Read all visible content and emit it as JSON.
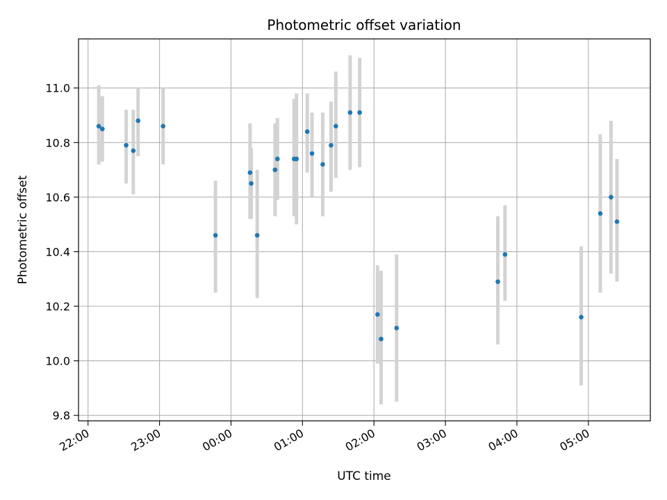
{
  "chart_data": {
    "type": "scatter",
    "title": "Photometric offset variation",
    "xlabel": "UTC time",
    "ylabel": "Photometric offset",
    "x_unit": "UTC time (HH:MM, night spanning midnight)",
    "xlim": [
      "21:52",
      "05:52"
    ],
    "ylim": [
      9.78,
      11.18
    ],
    "grid": true,
    "legend": "none",
    "x_ticks": [
      "22:00",
      "23:00",
      "00:00",
      "01:00",
      "02:00",
      "03:00",
      "04:00",
      "05:00"
    ],
    "y_ticks": [
      9.8,
      10.0,
      10.2,
      10.4,
      10.6,
      10.8,
      11.0
    ],
    "y_tick_labels": [
      "9.8",
      "10.0",
      "10.2",
      "10.4",
      "10.6",
      "10.8",
      "11.0"
    ],
    "colors": {
      "point": "#1f77b4",
      "errorbar": "#d3d3d3",
      "grid": "#b0b0b0"
    },
    "points": [
      {
        "x": "22:09",
        "y": 10.86,
        "ylow": 10.72,
        "yhigh": 11.01
      },
      {
        "x": "22:12",
        "y": 10.85,
        "ylow": 10.73,
        "yhigh": 10.97
      },
      {
        "x": "22:32",
        "y": 10.79,
        "ylow": 10.65,
        "yhigh": 10.92
      },
      {
        "x": "22:38",
        "y": 10.77,
        "ylow": 10.61,
        "yhigh": 10.92
      },
      {
        "x": "22:42",
        "y": 10.88,
        "ylow": 10.75,
        "yhigh": 11.0
      },
      {
        "x": "23:03",
        "y": 10.86,
        "ylow": 10.72,
        "yhigh": 11.0
      },
      {
        "x": "23:47",
        "y": 10.46,
        "ylow": 10.25,
        "yhigh": 10.66
      },
      {
        "x": "00:16",
        "y": 10.69,
        "ylow": 10.52,
        "yhigh": 10.87
      },
      {
        "x": "00:17",
        "y": 10.65,
        "ylow": 10.52,
        "yhigh": 10.78
      },
      {
        "x": "00:22",
        "y": 10.46,
        "ylow": 10.23,
        "yhigh": 10.7
      },
      {
        "x": "00:37",
        "y": 10.7,
        "ylow": 10.53,
        "yhigh": 10.87
      },
      {
        "x": "00:39",
        "y": 10.74,
        "ylow": 10.59,
        "yhigh": 10.89
      },
      {
        "x": "00:53",
        "y": 10.74,
        "ylow": 10.53,
        "yhigh": 10.96
      },
      {
        "x": "00:55",
        "y": 10.74,
        "ylow": 10.5,
        "yhigh": 10.98
      },
      {
        "x": "01:04",
        "y": 10.84,
        "ylow": 10.69,
        "yhigh": 10.98
      },
      {
        "x": "01:08",
        "y": 10.76,
        "ylow": 10.6,
        "yhigh": 10.91
      },
      {
        "x": "01:17",
        "y": 10.72,
        "ylow": 10.53,
        "yhigh": 10.91
      },
      {
        "x": "01:24",
        "y": 10.79,
        "ylow": 10.62,
        "yhigh": 10.95
      },
      {
        "x": "01:28",
        "y": 10.86,
        "ylow": 10.67,
        "yhigh": 11.06
      },
      {
        "x": "01:40",
        "y": 10.91,
        "ylow": 10.7,
        "yhigh": 11.12
      },
      {
        "x": "01:48",
        "y": 10.91,
        "ylow": 10.71,
        "yhigh": 11.11
      },
      {
        "x": "02:03",
        "y": 10.17,
        "ylow": 9.99,
        "yhigh": 10.35
      },
      {
        "x": "02:06",
        "y": 10.08,
        "ylow": 9.84,
        "yhigh": 10.33
      },
      {
        "x": "02:19",
        "y": 10.12,
        "ylow": 9.85,
        "yhigh": 10.39
      },
      {
        "x": "03:44",
        "y": 10.29,
        "ylow": 10.06,
        "yhigh": 10.53
      },
      {
        "x": "03:50",
        "y": 10.39,
        "ylow": 10.22,
        "yhigh": 10.57
      },
      {
        "x": "04:54",
        "y": 10.16,
        "ylow": 9.91,
        "yhigh": 10.42
      },
      {
        "x": "05:10",
        "y": 10.54,
        "ylow": 10.25,
        "yhigh": 10.83
      },
      {
        "x": "05:19",
        "y": 10.6,
        "ylow": 10.32,
        "yhigh": 10.88
      },
      {
        "x": "05:24",
        "y": 10.51,
        "ylow": 10.29,
        "yhigh": 10.74
      }
    ]
  }
}
